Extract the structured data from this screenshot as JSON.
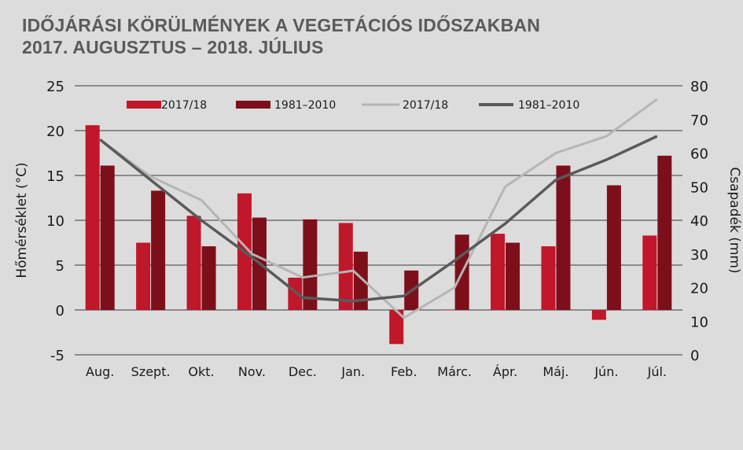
{
  "title": {
    "line1": "IDŐJÁRÁSI KÖRÜLMÉNYEK A VEGETÁCIÓS  IDŐSZAKBAN",
    "line2": "2017. AUGUSZTUS – 2018. JÚLIUS"
  },
  "chart_data": {
    "type": "bar",
    "categories": [
      "Aug.",
      "Szept.",
      "Okt.",
      "Nov.",
      "Dec.",
      "Jan.",
      "Feb.",
      "Márc.",
      "Ápr.",
      "Máj.",
      "Jún.",
      "Júl."
    ],
    "ylabel_left": "Hőmérséklet (°C)",
    "ylabel_right": "Csapadék (mm)",
    "ylim_left": [
      -5,
      25
    ],
    "yticks_left": [
      "25",
      "20",
      "15",
      "10",
      "5",
      "0",
      "-5"
    ],
    "ylim_right": [
      0,
      80
    ],
    "yticks_right": [
      "80",
      "70",
      "60",
      "50",
      "40",
      "30",
      "20",
      "10",
      "0"
    ],
    "grid": true,
    "legend_position": "top",
    "bar_series": [
      {
        "name": "2017/18",
        "color": "#c0172a",
        "axis": "left",
        "values": [
          20.6,
          7.5,
          10.5,
          13.0,
          3.6,
          9.7,
          -3.8,
          0.0,
          8.5,
          7.1,
          -1.1,
          8.3
        ]
      },
      {
        "name": "1981–2010",
        "color": "#7d0f1a",
        "axis": "left",
        "values": [
          16.1,
          13.3,
          7.1,
          10.3,
          10.1,
          6.5,
          4.4,
          8.4,
          7.5,
          16.1,
          13.9,
          17.2
        ]
      }
    ],
    "line_series": [
      {
        "name": "2017/18",
        "color": "#b5b5b5",
        "axis": "right",
        "values": [
          64,
          53,
          46,
          30,
          23,
          25,
          11,
          20,
          50,
          60,
          65,
          76
        ]
      },
      {
        "name": "1981–2010",
        "color": "#5a5a5a",
        "axis": "right",
        "values": [
          64,
          52,
          40,
          29,
          17,
          16,
          17.5,
          28,
          39,
          52,
          58,
          65
        ]
      }
    ]
  }
}
